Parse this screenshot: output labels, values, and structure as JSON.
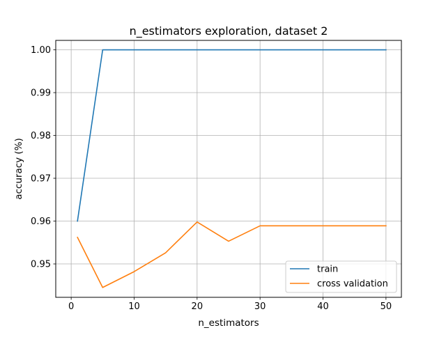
{
  "chart_data": {
    "type": "line",
    "title": "n_estimators exploration, dataset 2",
    "xlabel": "n_estimators",
    "ylabel": "accuracy (%)",
    "xlim": [
      -2.45,
      52.45
    ],
    "ylim": [
      0.9422,
      1.0022
    ],
    "xticks": [
      0,
      10,
      20,
      30,
      40,
      50
    ],
    "yticks": [
      0.95,
      0.96,
      0.97,
      0.98,
      0.99,
      1.0
    ],
    "ytick_labels": [
      "0.95",
      "0.96",
      "0.97",
      "0.98",
      "0.99",
      "1.00"
    ],
    "grid": true,
    "legend_position": "lower-right",
    "x": [
      1,
      5,
      10,
      15,
      20,
      25,
      30,
      35,
      40,
      45,
      50
    ],
    "series": [
      {
        "name": "train",
        "color": "#1f77b4",
        "values": [
          0.96,
          1.0,
          1.0,
          1.0,
          1.0,
          1.0,
          1.0,
          1.0,
          1.0,
          1.0,
          1.0
        ]
      },
      {
        "name": "cross validation",
        "color": "#ff7f0e",
        "values": [
          0.9562,
          0.9445,
          0.9482,
          0.9526,
          0.9598,
          0.9553,
          0.9589,
          0.9589,
          0.9589,
          0.9589,
          0.9589
        ]
      }
    ]
  }
}
